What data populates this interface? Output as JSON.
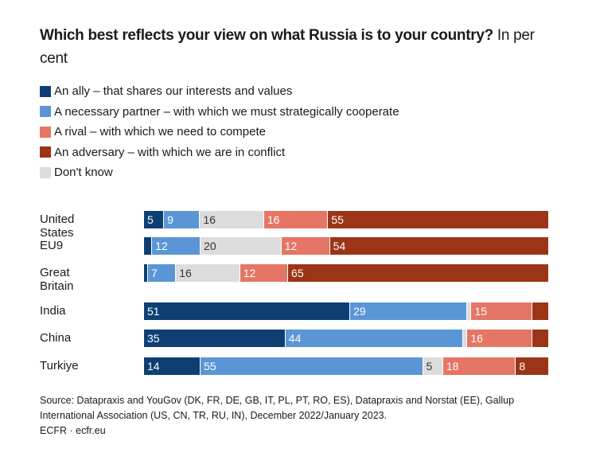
{
  "chart_data": {
    "type": "bar",
    "orientation": "horizontal",
    "stacked": true,
    "title": "Which best reflects your view on what Russia is to your country?",
    "subtitle": "In per cent",
    "xlabel": "",
    "ylabel": "",
    "xlim": [
      0,
      100
    ],
    "grid": false,
    "legend_position": "top-left",
    "categories": [
      "United States",
      "EU9",
      "Great Britain",
      "India",
      "China",
      "Turkiye"
    ],
    "groups": [
      [
        "United States",
        "EU9",
        "Great Britain"
      ],
      [
        "India",
        "China",
        "Turkiye"
      ]
    ],
    "series": [
      {
        "name": "An ally – that shares our interests and values",
        "color": "#0e3f73",
        "values": [
          5,
          2,
          1,
          51,
          35,
          14
        ],
        "labels": [
          "5",
          "",
          "",
          "51",
          "35",
          "14"
        ],
        "label_color": "light"
      },
      {
        "name": "A necessary partner – with which we must strategically cooperate",
        "color": "#5a96d6",
        "values": [
          9,
          12,
          7,
          29,
          44,
          55
        ],
        "labels": [
          "9",
          "12",
          "7",
          "29",
          "44",
          "55"
        ],
        "label_color": "light"
      },
      {
        "name": "Don't know",
        "color": "#dcdcdc",
        "values": [
          16,
          20,
          16,
          1,
          1,
          5
        ],
        "labels": [
          "16",
          "20",
          "16",
          "",
          "",
          "5"
        ],
        "label_color": "dark"
      },
      {
        "name": "A rival – with which we need to compete",
        "color": "#e57565",
        "values": [
          16,
          12,
          12,
          15,
          16,
          18
        ],
        "labels": [
          "16",
          "12",
          "12",
          "15",
          "16",
          "18"
        ],
        "label_color": "light"
      },
      {
        "name": "An adversary – with which we are in conflict",
        "color": "#9c3517",
        "values": [
          55,
          54,
          65,
          4,
          4,
          8
        ],
        "labels": [
          "55",
          "54",
          "65",
          "",
          "",
          "8"
        ],
        "label_color": "light"
      }
    ],
    "legend_order": [
      0,
      1,
      3,
      4,
      2
    ]
  },
  "header": {
    "title_bold": "Which best reflects your view on what Russia is to your country?",
    "title_rest": " In per cent"
  },
  "source": {
    "line1": "Source: Datapraxis and YouGov (DK, FR, DE, GB, IT, PL, PT, RO, ES), Datapraxis and Norstat (EE), Gallup International Association (US, CN, TR, RU, IN), December 2022/January 2023.",
    "line2": "ECFR · ecfr.eu"
  }
}
